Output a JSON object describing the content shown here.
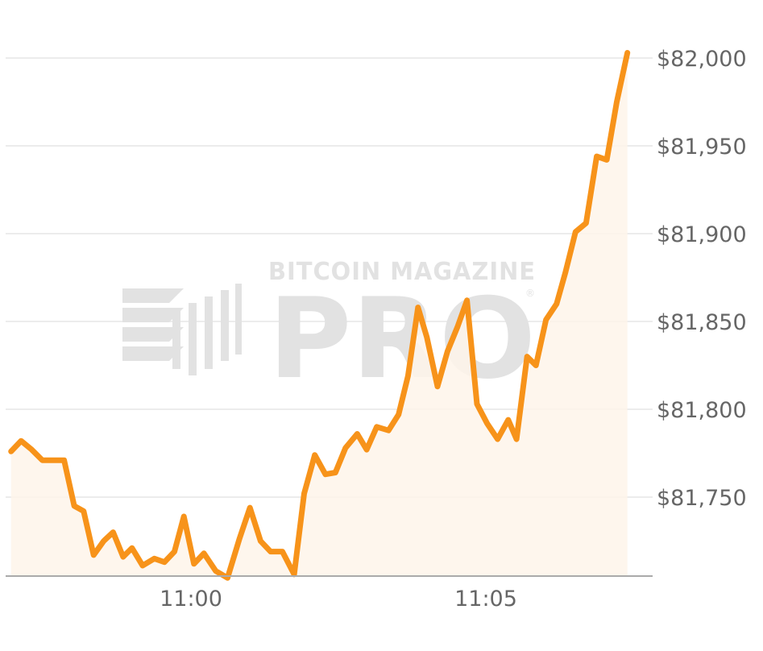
{
  "chart_data": {
    "type": "area",
    "title": "",
    "xlabel": "",
    "ylabel": "",
    "ylim": [
      81703,
      82004
    ],
    "x_ticks": [
      "11:00",
      "11:05"
    ],
    "y_ticks": [
      "$82,000",
      "$81,950",
      "$81,900",
      "$81,850",
      "$81,800",
      "$81,750"
    ],
    "y_tick_values": [
      82000,
      81950,
      81900,
      81850,
      81800,
      81750
    ],
    "x_tick_minutes": [
      0,
      5
    ],
    "xlim_minutes": [
      -3.05,
      7.73
    ],
    "grid": true,
    "line_color": "#f7931a",
    "fill_color": "#fef5ea",
    "watermark": {
      "line1": "BITCOIN MAGAZINE",
      "line2": "PRO",
      "mark": "®"
    },
    "series": [
      {
        "values": [
          [
            -3.05,
            81776
          ],
          [
            -2.88,
            81782
          ],
          [
            -2.7,
            81777
          ],
          [
            -2.52,
            81771
          ],
          [
            -2.35,
            81771
          ],
          [
            -2.15,
            81771
          ],
          [
            -1.98,
            81745
          ],
          [
            -1.82,
            81742
          ],
          [
            -1.65,
            81717
          ],
          [
            -1.48,
            81725
          ],
          [
            -1.32,
            81730
          ],
          [
            -1.15,
            81716
          ],
          [
            -1.0,
            81721
          ],
          [
            -0.82,
            81711
          ],
          [
            -0.62,
            81715
          ],
          [
            -0.45,
            81713
          ],
          [
            -0.28,
            81719
          ],
          [
            -0.12,
            81739
          ],
          [
            0.05,
            81712
          ],
          [
            0.22,
            81718
          ],
          [
            0.42,
            81708
          ],
          [
            0.62,
            81704
          ],
          [
            0.82,
            81726
          ],
          [
            1.0,
            81744
          ],
          [
            1.18,
            81725
          ],
          [
            1.35,
            81719
          ],
          [
            1.55,
            81719
          ],
          [
            1.75,
            81706
          ],
          [
            1.92,
            81752
          ],
          [
            2.1,
            81774
          ],
          [
            2.28,
            81763
          ],
          [
            2.45,
            81764
          ],
          [
            2.62,
            81778
          ],
          [
            2.82,
            81786
          ],
          [
            2.98,
            81777
          ],
          [
            3.15,
            81790
          ],
          [
            3.35,
            81788
          ],
          [
            3.52,
            81797
          ],
          [
            3.68,
            81819
          ],
          [
            3.85,
            81858
          ],
          [
            4.0,
            81841
          ],
          [
            4.18,
            81813
          ],
          [
            4.35,
            81833
          ],
          [
            4.52,
            81847
          ],
          [
            4.68,
            81862
          ],
          [
            4.85,
            81803
          ],
          [
            5.02,
            81792
          ],
          [
            5.2,
            81783
          ],
          [
            5.38,
            81794
          ],
          [
            5.52,
            81783
          ],
          [
            5.7,
            81830
          ],
          [
            5.85,
            81825
          ],
          [
            6.02,
            81851
          ],
          [
            6.2,
            81860
          ],
          [
            6.35,
            81878
          ],
          [
            6.52,
            81901
          ],
          [
            6.7,
            81906
          ],
          [
            6.88,
            81944
          ],
          [
            7.05,
            81942
          ],
          [
            7.22,
            81975
          ],
          [
            7.4,
            82003
          ]
        ]
      }
    ]
  }
}
